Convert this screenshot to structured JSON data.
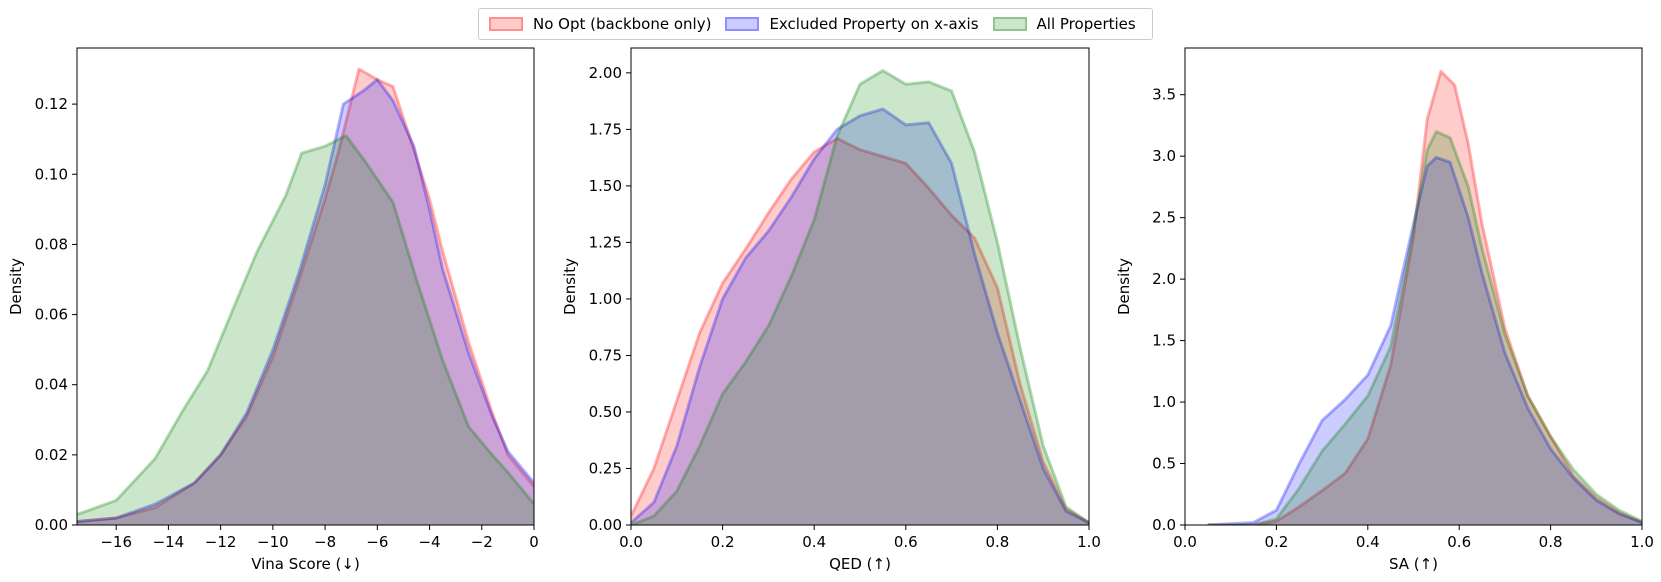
{
  "legend": {
    "items": [
      {
        "label": "No Opt (backbone only)",
        "color": "#ff0000"
      },
      {
        "label": "Excluded Property on x-axis",
        "color": "#0000ff"
      },
      {
        "label": "All Properties",
        "color": "#008000"
      }
    ]
  },
  "chart_data": [
    {
      "type": "area",
      "xlabel": "Vina Score (↓)",
      "ylabel": "Density",
      "xlim": [
        -17.5,
        0
      ],
      "ylim": [
        0,
        0.136
      ],
      "xticks": [
        -16,
        -14,
        -12,
        -10,
        -8,
        -6,
        -4,
        -2,
        0
      ],
      "xtick_labels": [
        "−16",
        "−14",
        "−12",
        "−10",
        "−8",
        "−6",
        "−4",
        "−2",
        "0"
      ],
      "yticks": [
        0,
        0.02,
        0.04,
        0.06,
        0.08,
        0.1,
        0.12
      ],
      "ytick_labels": [
        "0.00",
        "0.02",
        "0.04",
        "0.06",
        "0.08",
        "0.10",
        "0.12"
      ],
      "series": [
        {
          "name": "No Opt (backbone only)",
          "color": "#ff0000",
          "x": [
            -17.5,
            -16,
            -14.5,
            -13,
            -12,
            -11,
            -10,
            -9,
            -8,
            -7.5,
            -6.7,
            -6,
            -5.4,
            -4.6,
            -4,
            -3.5,
            -2.5,
            -1.6,
            -1,
            0
          ],
          "y": [
            0.001,
            0.002,
            0.005,
            0.012,
            0.02,
            0.031,
            0.048,
            0.07,
            0.093,
            0.106,
            0.13,
            0.127,
            0.125,
            0.107,
            0.093,
            0.078,
            0.052,
            0.032,
            0.02,
            0.011
          ]
        },
        {
          "name": "Excluded Property on x-axis",
          "color": "#0000ff",
          "x": [
            -17.5,
            -16,
            -14.5,
            -13,
            -12,
            -11,
            -10,
            -9,
            -8,
            -7.3,
            -6.5,
            -6,
            -5.4,
            -4.6,
            -4,
            -3.5,
            -2.5,
            -1.6,
            -1,
            0
          ],
          "y": [
            0.001,
            0.002,
            0.006,
            0.012,
            0.02,
            0.032,
            0.05,
            0.072,
            0.097,
            0.12,
            0.124,
            0.127,
            0.121,
            0.108,
            0.09,
            0.073,
            0.049,
            0.031,
            0.021,
            0.012
          ]
        },
        {
          "name": "All Properties",
          "color": "#008000",
          "x": [
            -17.5,
            -16,
            -14.5,
            -13.5,
            -12.5,
            -11.5,
            -10.6,
            -9.5,
            -8.9,
            -8,
            -7.2,
            -6.5,
            -5.4,
            -4.5,
            -3.5,
            -2.5,
            -1.6,
            -1,
            0
          ],
          "y": [
            0.003,
            0.007,
            0.019,
            0.032,
            0.044,
            0.062,
            0.078,
            0.094,
            0.106,
            0.108,
            0.111,
            0.104,
            0.092,
            0.07,
            0.047,
            0.028,
            0.02,
            0.015,
            0.006
          ]
        }
      ]
    },
    {
      "type": "area",
      "xlabel": "QED (↑)",
      "ylabel": "Density",
      "xlim": [
        0,
        1
      ],
      "ylim": [
        0,
        2.11
      ],
      "xticks": [
        0,
        0.2,
        0.4,
        0.6,
        0.8,
        1.0
      ],
      "xtick_labels": [
        "0.0",
        "0.2",
        "0.4",
        "0.6",
        "0.8",
        "1.0"
      ],
      "yticks": [
        0,
        0.25,
        0.5,
        0.75,
        1.0,
        1.25,
        1.5,
        1.75,
        2.0
      ],
      "ytick_labels": [
        "0.00",
        "0.25",
        "0.50",
        "0.75",
        "1.00",
        "1.25",
        "1.50",
        "1.75",
        "2.00"
      ],
      "series": [
        {
          "name": "No Opt (backbone only)",
          "color": "#ff0000",
          "x": [
            0,
            0.05,
            0.1,
            0.15,
            0.2,
            0.25,
            0.3,
            0.35,
            0.4,
            0.45,
            0.5,
            0.55,
            0.6,
            0.65,
            0.7,
            0.75,
            0.8,
            0.85,
            0.9,
            0.95,
            1.0
          ],
          "y": [
            0.04,
            0.25,
            0.55,
            0.85,
            1.07,
            1.22,
            1.38,
            1.53,
            1.65,
            1.71,
            1.66,
            1.63,
            1.6,
            1.49,
            1.37,
            1.27,
            1.05,
            0.62,
            0.28,
            0.07,
            0.01
          ]
        },
        {
          "name": "Excluded Property on x-axis",
          "color": "#0000ff",
          "x": [
            0,
            0.05,
            0.1,
            0.15,
            0.2,
            0.25,
            0.3,
            0.35,
            0.4,
            0.45,
            0.5,
            0.55,
            0.6,
            0.65,
            0.7,
            0.75,
            0.8,
            0.85,
            0.9,
            0.95,
            1.0
          ],
          "y": [
            0.01,
            0.1,
            0.35,
            0.7,
            1.0,
            1.18,
            1.3,
            1.45,
            1.62,
            1.75,
            1.81,
            1.84,
            1.77,
            1.78,
            1.6,
            1.2,
            0.85,
            0.55,
            0.25,
            0.06,
            0.01
          ]
        },
        {
          "name": "All Properties",
          "color": "#008000",
          "x": [
            0,
            0.05,
            0.1,
            0.15,
            0.2,
            0.25,
            0.3,
            0.35,
            0.4,
            0.45,
            0.5,
            0.55,
            0.6,
            0.65,
            0.7,
            0.75,
            0.8,
            0.85,
            0.9,
            0.95,
            1.0
          ],
          "y": [
            0.0,
            0.04,
            0.15,
            0.35,
            0.58,
            0.72,
            0.88,
            1.1,
            1.35,
            1.72,
            1.95,
            2.01,
            1.95,
            1.96,
            1.92,
            1.65,
            1.25,
            0.78,
            0.35,
            0.08,
            0.01
          ]
        }
      ]
    },
    {
      "type": "area",
      "xlabel": "SA (↑)",
      "ylabel": "Density",
      "xlim": [
        0,
        1
      ],
      "ylim": [
        0,
        3.88
      ],
      "xticks": [
        0,
        0.2,
        0.4,
        0.6,
        0.8,
        1.0
      ],
      "xtick_labels": [
        "0.0",
        "0.2",
        "0.4",
        "0.6",
        "0.8",
        "1.0"
      ],
      "yticks": [
        0,
        0.5,
        1.0,
        1.5,
        2.0,
        2.5,
        3.0,
        3.5
      ],
      "ytick_labels": [
        "0.0",
        "0.5",
        "1.0",
        "1.5",
        "2.0",
        "2.5",
        "3.0",
        "3.5"
      ],
      "series": [
        {
          "name": "No Opt (backbone only)",
          "color": "#ff0000",
          "x": [
            0.05,
            0.15,
            0.2,
            0.25,
            0.3,
            0.35,
            0.4,
            0.45,
            0.5,
            0.53,
            0.56,
            0.59,
            0.62,
            0.65,
            0.7,
            0.75,
            0.8,
            0.85,
            0.9,
            0.95,
            1.0
          ],
          "y": [
            0.0,
            0.0,
            0.03,
            0.15,
            0.28,
            0.42,
            0.7,
            1.3,
            2.35,
            3.3,
            3.69,
            3.58,
            3.1,
            2.45,
            1.6,
            1.05,
            0.72,
            0.4,
            0.22,
            0.1,
            0.02
          ]
        },
        {
          "name": "Excluded Property on x-axis",
          "color": "#0000ff",
          "x": [
            0.05,
            0.15,
            0.2,
            0.25,
            0.3,
            0.35,
            0.4,
            0.45,
            0.5,
            0.53,
            0.55,
            0.58,
            0.62,
            0.65,
            0.7,
            0.75,
            0.8,
            0.85,
            0.9,
            0.95,
            1.0
          ],
          "y": [
            0.0,
            0.02,
            0.12,
            0.5,
            0.85,
            1.02,
            1.22,
            1.62,
            2.45,
            2.92,
            2.99,
            2.95,
            2.5,
            2.05,
            1.4,
            0.95,
            0.62,
            0.38,
            0.2,
            0.09,
            0.02
          ]
        },
        {
          "name": "All Properties",
          "color": "#008000",
          "x": [
            0.05,
            0.15,
            0.2,
            0.25,
            0.3,
            0.35,
            0.4,
            0.45,
            0.5,
            0.53,
            0.55,
            0.58,
            0.62,
            0.65,
            0.7,
            0.75,
            0.8,
            0.85,
            0.9,
            0.95,
            1.0
          ],
          "y": [
            0.0,
            0.0,
            0.05,
            0.3,
            0.6,
            0.82,
            1.05,
            1.45,
            2.4,
            3.05,
            3.2,
            3.15,
            2.75,
            2.25,
            1.55,
            1.05,
            0.72,
            0.45,
            0.25,
            0.12,
            0.03
          ]
        }
      ]
    }
  ]
}
